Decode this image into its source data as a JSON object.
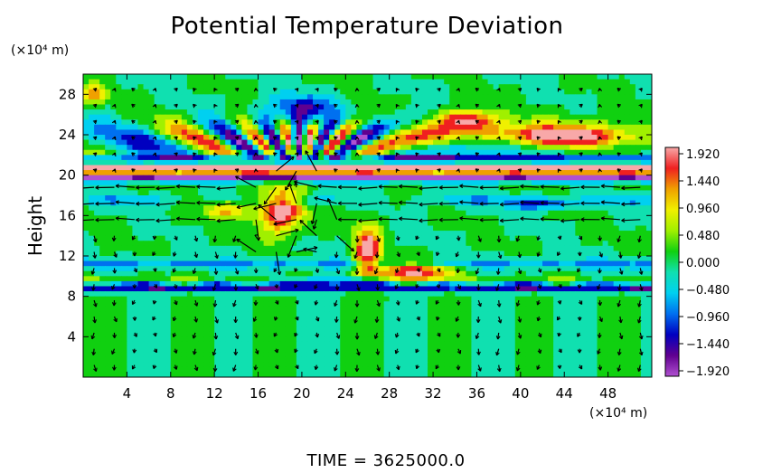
{
  "chart_data": {
    "type": "heatmap",
    "title": "Potential Temperature Deviation",
    "ylabel": "Height",
    "y_unit": "(×10⁴ m)",
    "x_unit": "(×10⁴ m)",
    "footer": "TIME  =  3625000.0",
    "xlim": [
      0,
      52
    ],
    "ylim": [
      0,
      30
    ],
    "x_ticks": [
      4,
      8,
      12,
      16,
      20,
      24,
      28,
      32,
      36,
      40,
      44,
      48
    ],
    "y_ticks": [
      4,
      8,
      12,
      16,
      20,
      24,
      28
    ],
    "grid": false,
    "overlay": "wind-vector-arrows",
    "colorbar": {
      "position": "right",
      "range": [
        -1.92,
        1.92
      ],
      "ticks": [
        "1.920",
        "1.440",
        "0.960",
        "0.480",
        "0.000",
        "−0.480",
        "−0.960",
        "−1.440",
        "−1.920"
      ],
      "colors": [
        "#f8a8a8",
        "#f02020",
        "#f0a000",
        "#f0f000",
        "#a0f000",
        "#10d010",
        "#10e0b0",
        "#00d0f0",
        "#0070f0",
        "#0000c0",
        "#600090",
        "#b050d0"
      ]
    },
    "features": [
      {
        "name": "lower-layer",
        "y_range": [
          0,
          9
        ],
        "value": 0.0
      },
      {
        "name": "cold-band",
        "y": 9,
        "value": -1.92
      },
      {
        "name": "warm-band",
        "y": 20.5,
        "value": 1.92
      },
      {
        "name": "cold-band",
        "y": 19.5,
        "value": -1.92
      },
      {
        "name": "warm-region",
        "x_range": [
          38,
          52
        ],
        "y_range": [
          22,
          25
        ],
        "value": 1.92
      },
      {
        "name": "cold-region",
        "x_range": [
          17,
          23
        ],
        "y_range": [
          25,
          28
        ],
        "value": -1.44
      },
      {
        "name": "warm-plume",
        "x_range": [
          24,
          34
        ],
        "y_range": [
          9,
          15
        ],
        "value": 1.92
      }
    ]
  }
}
